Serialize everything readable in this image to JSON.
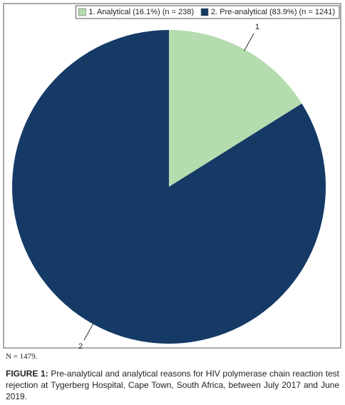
{
  "chart_data": {
    "type": "pie",
    "categories": [
      "1. Analytical (16.1%) (n = 238)",
      "2. Pre-analytical (83.9%) (n = 1241)"
    ],
    "slice_labels": [
      "1",
      "2"
    ],
    "values": [
      238,
      1241
    ],
    "colors": [
      "#b5dcae",
      "#153a66"
    ],
    "legend": "top-right"
  },
  "footnote": "N = 1479.",
  "caption_label": "FIGURE 1:",
  "caption_text": "Pre-analytical and analytical reasons for HIV polymerase chain reaction test rejection at Tygerberg Hospital, Cape Town, South Africa, between July 2017 and June 2019."
}
